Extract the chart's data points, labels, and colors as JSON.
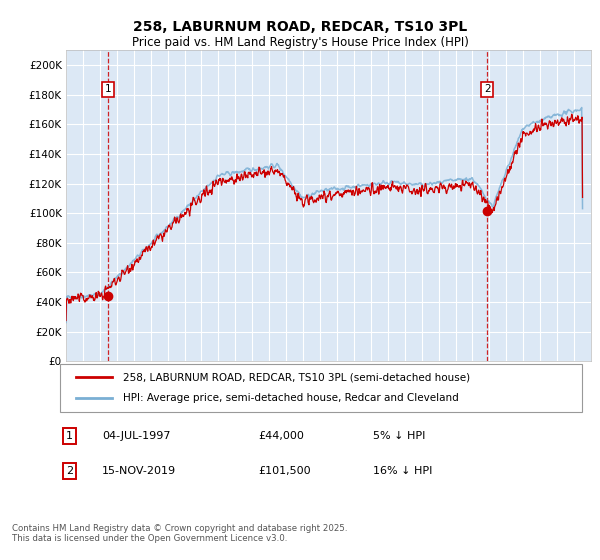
{
  "title_line1": "258, LABURNUM ROAD, REDCAR, TS10 3PL",
  "title_line2": "Price paid vs. HM Land Registry's House Price Index (HPI)",
  "plot_bg_color": "#dce8f5",
  "grid_color": "#ffffff",
  "red_line_color": "#cc0000",
  "blue_line_color": "#7aafd4",
  "sale1_date": "04-JUL-1997",
  "sale1_price": 44000,
  "sale1_year": 1997.5,
  "sale2_date": "15-NOV-2019",
  "sale2_price": 101500,
  "sale2_year": 2019.88,
  "legend_label1": "258, LABURNUM ROAD, REDCAR, TS10 3PL (semi-detached house)",
  "legend_label2": "HPI: Average price, semi-detached house, Redcar and Cleveland",
  "footer": "Contains HM Land Registry data © Crown copyright and database right 2025.\nThis data is licensed under the Open Government Licence v3.0.",
  "yticks": [
    0,
    20000,
    40000,
    60000,
    80000,
    100000,
    120000,
    140000,
    160000,
    180000,
    200000
  ],
  "ytick_labels": [
    "£0",
    "£20K",
    "£40K",
    "£60K",
    "£80K",
    "£100K",
    "£120K",
    "£140K",
    "£160K",
    "£180K",
    "£200K"
  ],
  "xmin": 1995,
  "xmax": 2026,
  "ymin": 0,
  "ymax": 210000
}
